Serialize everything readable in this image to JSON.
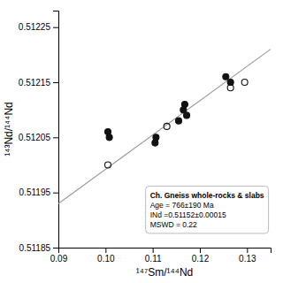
{
  "chart_data": {
    "type": "scatter",
    "xlabel": "¹⁴⁷Sm/¹⁴⁴Nd",
    "ylabel": "¹⁴³Nd/¹⁴⁴Nd",
    "xlim": [
      0.09,
      0.135
    ],
    "ylim": [
      0.51185,
      0.51228
    ],
    "xticks": [
      0.09,
      {
        "value": 0.1,
        "label": "0.10"
      },
      0.11,
      0.12,
      0.13
    ],
    "yticks": [
      0.51185,
      0.51195,
      0.51205,
      0.51215,
      0.51225
    ],
    "series": [
      {
        "type": "line",
        "color": "#999999",
        "line_style": "solid",
        "x": [
          0.09,
          0.135
        ],
        "values": [
          0.51193,
          0.51221
        ]
      },
      {
        "type": "scatter",
        "marker": "open-circle",
        "color": "#111111",
        "x": [
          0.1005,
          0.113,
          0.1265,
          0.1295
        ],
        "values": [
          0.512,
          0.51207,
          0.51214,
          0.51215
        ]
      },
      {
        "type": "scatter",
        "marker": "circle",
        "color": "#111111",
        "x": [
          0.1005,
          0.1008,
          0.1105,
          0.1107,
          0.1155,
          0.1165,
          0.1168,
          0.1172,
          0.1255,
          0.1265
        ],
        "values": [
          0.51206,
          0.51205,
          0.51204,
          0.51205,
          0.51208,
          0.5121,
          0.51211,
          0.51209,
          0.51216,
          0.51215
        ]
      }
    ],
    "annotations": [
      "Ch. Gneiss whole-rocks & slabs",
      "Age = 766±190 Ma",
      "INd =0.51152±0.00015",
      "MSWD = 0.22"
    ]
  }
}
